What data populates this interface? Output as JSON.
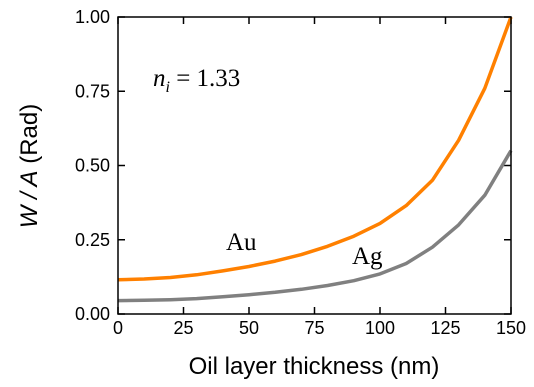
{
  "chart_data": {
    "type": "line",
    "xlabel": "Oil layer thickness (nm)",
    "ylabel_main": "W / A",
    "ylabel_unit": "(Rad)",
    "xlim": [
      0,
      150
    ],
    "ylim": [
      0,
      1.0
    ],
    "x_ticks": [
      0,
      25,
      50,
      75,
      100,
      125,
      150
    ],
    "y_ticks": [
      0.0,
      0.25,
      0.5,
      0.75,
      1.0
    ],
    "y_tick_labels": [
      "0.00",
      "0.25",
      "0.50",
      "0.75",
      "1.00"
    ],
    "grid": false,
    "annotation": {
      "symbol": "n",
      "subscript": "i",
      "rest": " = 1.33"
    },
    "x": [
      0,
      10,
      20,
      30,
      40,
      50,
      60,
      70,
      80,
      90,
      100,
      110,
      120,
      130,
      140,
      150
    ],
    "series": [
      {
        "name": "Au",
        "color": "#ff8000",
        "values": [
          0.115,
          0.118,
          0.123,
          0.132,
          0.145,
          0.16,
          0.178,
          0.2,
          0.228,
          0.262,
          0.305,
          0.365,
          0.45,
          0.585,
          0.76,
          1.0
        ]
      },
      {
        "name": "Ag",
        "color": "#808080",
        "values": [
          0.045,
          0.046,
          0.048,
          0.052,
          0.058,
          0.065,
          0.073,
          0.083,
          0.096,
          0.112,
          0.135,
          0.17,
          0.225,
          0.3,
          0.4,
          0.55
        ]
      }
    ]
  }
}
